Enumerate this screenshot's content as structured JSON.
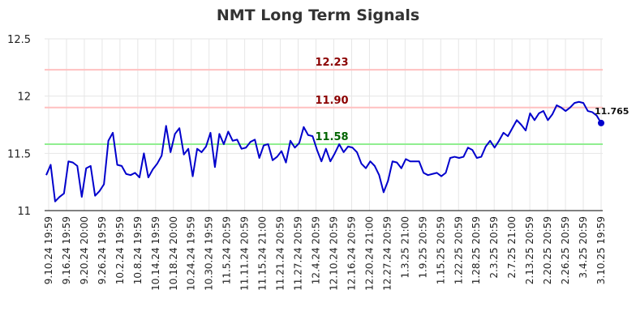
{
  "chart_data": {
    "type": "line",
    "title": "NMT Long Term Signals",
    "xlabel": "",
    "ylabel": "",
    "ylim": [
      11,
      12.5
    ],
    "yticks": [
      "11",
      "11.5",
      "12",
      "12.5"
    ],
    "grid": true,
    "colors": {
      "line": "#0000cc",
      "upper_level": "#ffc0c0",
      "upper_label": "#8b0000",
      "lower_level": "#90ee90",
      "lower_label": "#006400",
      "grid": "#e6e6e6",
      "axis": "#000000"
    },
    "xtick_labels": [
      "9.10.24 19:59",
      "9.16.24 19:59",
      "9.20.24 20:00",
      "9.26.24 19:59",
      "10.2.24 19:59",
      "10.8.24 19:59",
      "10.14.24 19:59",
      "10.18.24 20:00",
      "10.24.24 19:59",
      "10.30.24 19:59",
      "11.5.24 20:59",
      "11.11.24 20:59",
      "11.15.24 21:00",
      "11.21.24 20:59",
      "11.27.24 20:59",
      "12.4.24 20:59",
      "12.10.24 20:59",
      "12.16.24 20:59",
      "12.20.24 21:00",
      "12.27.24 20:59",
      "1.3.25 21:00",
      "1.9.25 20:59",
      "1.15.25 20:59",
      "1.22.25 20:59",
      "1.28.25 20:59",
      "2.3.25 20:59",
      "2.7.25 21:00",
      "2.13.25 20:59",
      "2.20.25 20:59",
      "2.26.25 20:59",
      "3.4.25 20:59",
      "3.10.25 19:59"
    ],
    "series": [
      {
        "values": [
          11.31,
          11.4,
          11.08,
          11.12,
          11.15,
          11.43,
          11.42,
          11.39,
          11.12,
          11.37,
          11.39,
          11.13,
          11.17,
          11.23,
          11.61,
          11.68,
          11.4,
          11.39,
          11.32,
          11.31,
          11.33,
          11.29,
          11.5,
          11.29,
          11.36,
          11.41,
          11.48,
          11.74,
          11.51,
          11.67,
          11.72,
          11.49,
          11.54,
          11.3,
          11.54,
          11.51,
          11.56,
          11.68,
          11.38,
          11.67,
          11.58,
          11.69,
          11.61,
          11.62,
          11.54,
          11.55,
          11.6,
          11.62,
          11.46,
          11.57,
          11.58,
          11.44,
          11.47,
          11.52,
          11.42,
          11.61,
          11.55,
          11.59,
          11.73,
          11.66,
          11.65,
          11.53,
          11.43,
          11.54,
          11.43,
          11.5,
          11.58,
          11.51,
          11.56,
          11.55,
          11.51,
          11.41,
          11.37,
          11.43,
          11.39,
          11.31,
          11.16,
          11.26,
          11.43,
          11.42,
          11.37,
          11.45,
          11.43,
          11.43,
          11.43,
          11.33,
          11.31,
          11.32,
          11.33,
          11.3,
          11.33,
          11.46,
          11.47,
          11.46,
          11.47,
          11.55,
          11.53,
          11.46,
          11.47,
          11.56,
          11.61,
          11.55,
          11.61,
          11.68,
          11.65,
          11.72,
          11.79,
          11.75,
          11.7,
          11.85,
          11.79,
          11.85,
          11.87,
          11.79,
          11.84,
          11.92,
          11.9,
          11.87,
          11.9,
          11.94,
          11.95,
          11.94,
          11.87,
          11.86,
          11.83,
          11.765
        ]
      }
    ],
    "levels": [
      {
        "value": 12.23,
        "label": "12.23",
        "kind": "upper"
      },
      {
        "value": 11.9,
        "label": "11.90",
        "kind": "upper"
      },
      {
        "value": 11.58,
        "label": "11.58",
        "kind": "lower"
      }
    ],
    "last_value_label": "11.765"
  }
}
